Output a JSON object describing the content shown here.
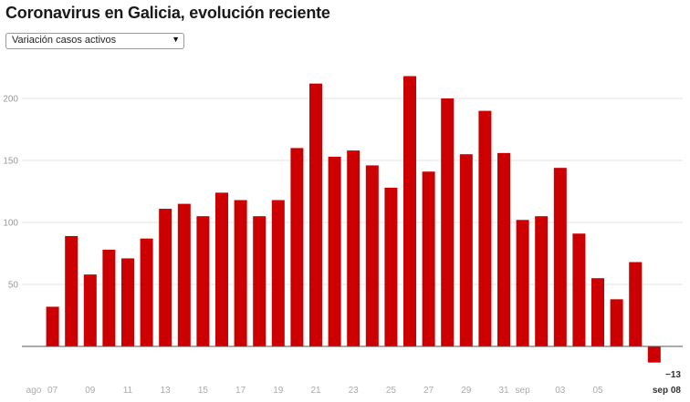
{
  "header": {
    "title": "Coronavirus en Galicia, evolución reciente"
  },
  "selector": {
    "value": "Variación casos activos",
    "arrow": "▼"
  },
  "colors": {
    "bar": "#cc0000",
    "grid": "#e6e6e6",
    "baseline": "#555555",
    "tick": "#999999"
  },
  "chart_data": {
    "type": "bar",
    "title": "",
    "xlabel": "",
    "ylabel": "",
    "ylim": [
      -28,
      230
    ],
    "y_ticks": [
      50,
      100,
      150,
      200
    ],
    "grid": true,
    "categories": [
      "ago 06",
      "ago 07",
      "ago 08",
      "ago 09",
      "ago 10",
      "ago 11",
      "ago 12",
      "ago 13",
      "ago 14",
      "ago 15",
      "ago 16",
      "ago 17",
      "ago 18",
      "ago 19",
      "ago 20",
      "ago 21",
      "ago 22",
      "ago 23",
      "ago 24",
      "ago 25",
      "ago 26",
      "ago 27",
      "ago 28",
      "ago 29",
      "ago 30",
      "ago 31",
      "sep 01",
      "sep 02",
      "sep 03",
      "sep 04",
      "sep 05",
      "sep 06",
      "sep 07",
      "sep 08"
    ],
    "values": [
      null,
      32,
      89,
      58,
      78,
      71,
      87,
      111,
      115,
      105,
      124,
      118,
      105,
      118,
      160,
      212,
      153,
      158,
      146,
      128,
      218,
      141,
      200,
      155,
      190,
      156,
      102,
      105,
      144,
      91,
      55,
      38,
      68,
      -13
    ],
    "x_tick_labels": [
      {
        "index": 0,
        "label": "ago"
      },
      {
        "index": 1,
        "label": "07"
      },
      {
        "index": 3,
        "label": "09"
      },
      {
        "index": 5,
        "label": "11"
      },
      {
        "index": 7,
        "label": "13"
      },
      {
        "index": 9,
        "label": "15"
      },
      {
        "index": 11,
        "label": "17"
      },
      {
        "index": 13,
        "label": "19"
      },
      {
        "index": 15,
        "label": "21"
      },
      {
        "index": 17,
        "label": "23"
      },
      {
        "index": 19,
        "label": "25"
      },
      {
        "index": 21,
        "label": "27"
      },
      {
        "index": 23,
        "label": "29"
      },
      {
        "index": 25,
        "label": "31"
      },
      {
        "index": 26,
        "label": "sep"
      },
      {
        "index": 28,
        "label": "03"
      },
      {
        "index": 30,
        "label": "05"
      },
      {
        "index": 33,
        "label": "sep 08"
      }
    ],
    "highlight": {
      "index": 33,
      "value_label": "−13",
      "date_label": "sep 08"
    }
  }
}
